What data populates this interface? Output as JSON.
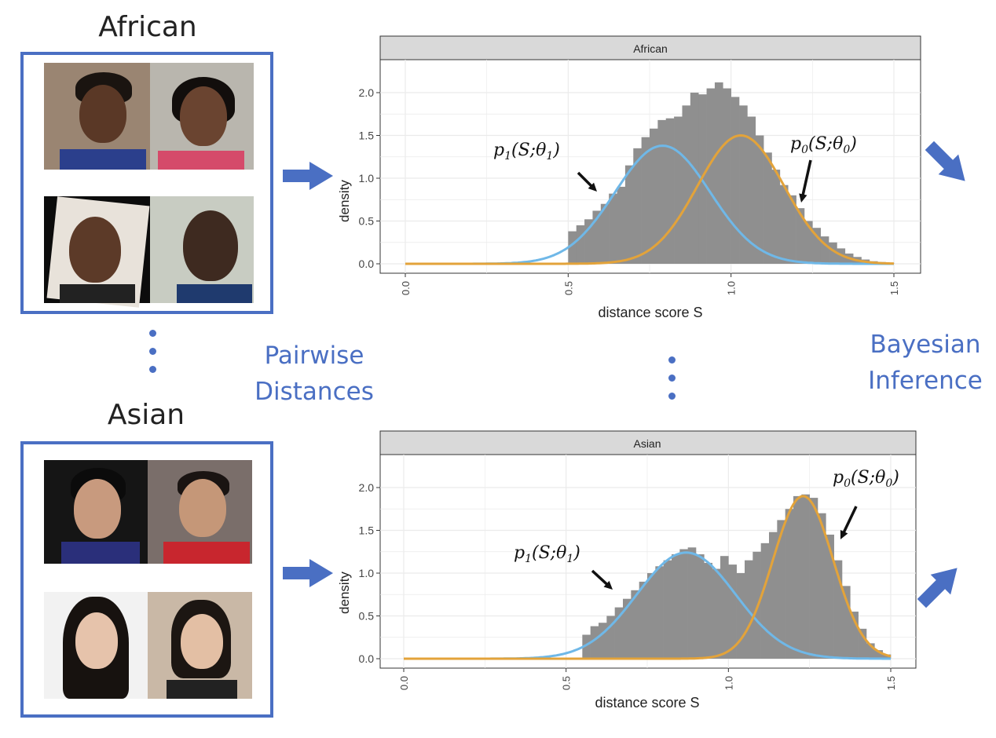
{
  "groups": [
    {
      "title": "African"
    },
    {
      "title": "Asian"
    }
  ],
  "labels": {
    "pairwise_line1": "Pairwise",
    "pairwise_line2": "Distances",
    "bayes_line1": "Bayesian",
    "bayes_line2": "Inference"
  },
  "colors": {
    "accent": "#4a6fc3",
    "histogram": "#8f8f8f",
    "p1_curve": "#6fb8e8",
    "p0_curve": "#e3a33a",
    "strip": "#d9d9d9"
  },
  "chart_data": [
    {
      "type": "bar",
      "panel": "African",
      "xlabel": "distance score S",
      "ylabel": "density",
      "xlim": [
        0.0,
        1.5
      ],
      "ylim": [
        0.0,
        2.0
      ],
      "x_ticks": [
        "0.0",
        "0.5",
        "1.0",
        "1.5"
      ],
      "y_ticks": [
        "0.0",
        "0.5",
        "1.0",
        "1.5",
        "2.0"
      ],
      "grid": true,
      "bins": [
        0.5,
        0.525,
        0.55,
        0.575,
        0.6,
        0.625,
        0.65,
        0.675,
        0.7,
        0.725,
        0.75,
        0.775,
        0.8,
        0.825,
        0.85,
        0.875,
        0.9,
        0.925,
        0.95,
        0.975,
        1.0,
        1.025,
        1.05,
        1.075,
        1.1,
        1.125,
        1.15,
        1.175,
        1.2,
        1.225,
        1.25,
        1.275,
        1.3,
        1.325,
        1.35,
        1.375,
        1.4,
        1.425,
        1.45,
        1.475
      ],
      "values": [
        0.38,
        0.45,
        0.52,
        0.62,
        0.7,
        0.82,
        0.9,
        1.15,
        1.35,
        1.48,
        1.58,
        1.68,
        1.7,
        1.72,
        1.85,
        2.0,
        1.98,
        2.05,
        2.12,
        2.05,
        1.95,
        1.85,
        1.72,
        1.5,
        1.3,
        1.1,
        0.92,
        0.8,
        0.65,
        0.5,
        0.42,
        0.32,
        0.25,
        0.18,
        0.12,
        0.08,
        0.05,
        0.03,
        0.02,
        0.01
      ],
      "curves": [
        {
          "label": "p1(S;θ1)",
          "mean": 0.79,
          "sd": 0.146,
          "peak": 1.38
        },
        {
          "label": "p0(S;θ0)",
          "mean": 1.03,
          "sd": 0.133,
          "peak": 1.5
        }
      ]
    },
    {
      "type": "bar",
      "panel": "Asian",
      "xlabel": "distance score S",
      "ylabel": "density",
      "xlim": [
        0.0,
        1.5
      ],
      "ylim": [
        0.0,
        2.0
      ],
      "x_ticks": [
        "0.0",
        "0.5",
        "1.0",
        "1.5"
      ],
      "y_ticks": [
        "0.0",
        "0.5",
        "1.0",
        "1.5",
        "2.0"
      ],
      "grid": true,
      "bins": [
        0.55,
        0.575,
        0.6,
        0.625,
        0.65,
        0.675,
        0.7,
        0.725,
        0.75,
        0.775,
        0.8,
        0.825,
        0.85,
        0.875,
        0.9,
        0.925,
        0.95,
        0.975,
        1.0,
        1.025,
        1.05,
        1.075,
        1.1,
        1.125,
        1.15,
        1.175,
        1.2,
        1.225,
        1.25,
        1.275,
        1.3,
        1.325,
        1.35,
        1.375,
        1.4,
        1.425,
        1.45,
        1.475
      ],
      "values": [
        0.28,
        0.38,
        0.42,
        0.5,
        0.6,
        0.7,
        0.8,
        0.9,
        1.0,
        1.08,
        1.15,
        1.22,
        1.28,
        1.3,
        1.22,
        1.12,
        1.05,
        1.2,
        1.1,
        1.0,
        1.15,
        1.25,
        1.35,
        1.48,
        1.62,
        1.75,
        1.9,
        1.92,
        1.88,
        1.7,
        1.45,
        1.15,
        0.85,
        0.55,
        0.35,
        0.18,
        0.1,
        0.05
      ],
      "curves": [
        {
          "label": "p1(S;θ1)",
          "mean": 0.87,
          "sd": 0.152,
          "peak": 1.24
        },
        {
          "label": "p0(S;θ0)",
          "mean": 1.23,
          "sd": 0.093,
          "peak": 1.9
        }
      ]
    }
  ]
}
